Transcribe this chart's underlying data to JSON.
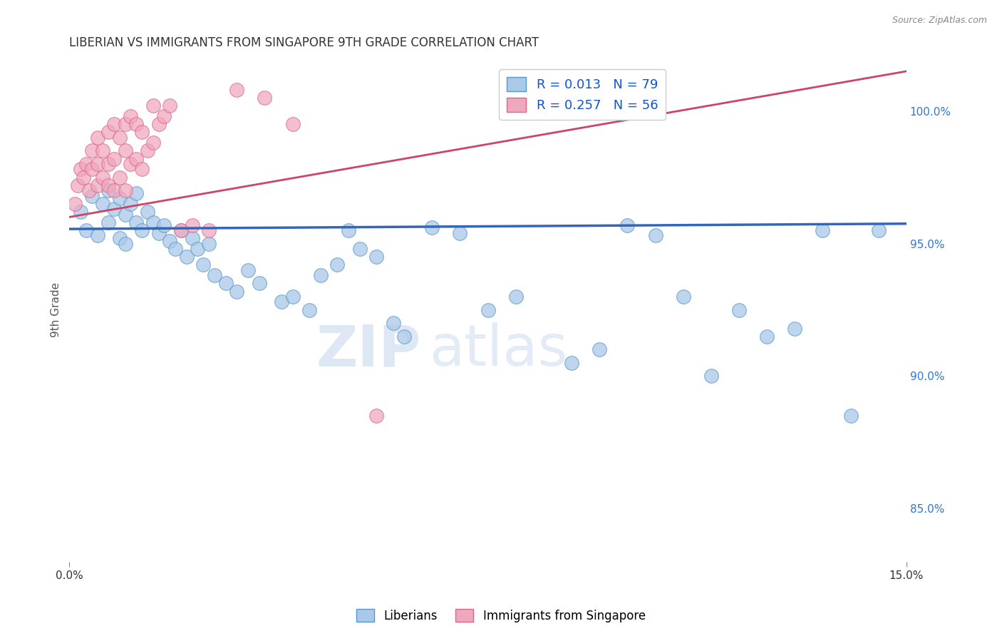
{
  "title": "LIBERIAN VS IMMIGRANTS FROM SINGAPORE 9TH GRADE CORRELATION CHART",
  "source": "Source: ZipAtlas.com",
  "ylabel": "9th Grade",
  "y_ticks": [
    85.0,
    90.0,
    95.0,
    100.0
  ],
  "x_range": [
    0.0,
    15.0
  ],
  "y_range": [
    83.0,
    102.0
  ],
  "blue_R": 0.013,
  "blue_N": 79,
  "pink_R": 0.257,
  "pink_N": 56,
  "blue_color": "#aac8e8",
  "pink_color": "#f0a8be",
  "blue_edge_color": "#5599cc",
  "pink_edge_color": "#dd6688",
  "blue_line_color": "#3366bb",
  "pink_line_color": "#cc4466",
  "legend_label_blue": "Liberians",
  "legend_label_pink": "Immigrants from Singapore",
  "watermark_zip": "ZIP",
  "watermark_atlas": "atlas",
  "blue_scatter_x": [
    0.2,
    0.3,
    0.4,
    0.5,
    0.6,
    0.7,
    0.7,
    0.8,
    0.9,
    0.9,
    1.0,
    1.0,
    1.1,
    1.2,
    1.2,
    1.3,
    1.4,
    1.5,
    1.6,
    1.7,
    1.8,
    1.9,
    2.0,
    2.1,
    2.2,
    2.3,
    2.4,
    2.5,
    2.6,
    2.8,
    3.0,
    3.2,
    3.4,
    3.8,
    4.0,
    4.3,
    4.5,
    4.8,
    5.0,
    5.2,
    5.5,
    5.8,
    6.0,
    6.5,
    7.0,
    7.5,
    8.0,
    9.0,
    9.5,
    10.0,
    10.5,
    11.0,
    11.5,
    12.0,
    12.5,
    13.0,
    13.5,
    14.0,
    14.5
  ],
  "blue_scatter_y": [
    96.2,
    95.5,
    96.8,
    95.3,
    96.5,
    97.0,
    95.8,
    96.3,
    96.7,
    95.2,
    96.1,
    95.0,
    96.5,
    95.8,
    96.9,
    95.5,
    96.2,
    95.8,
    95.4,
    95.7,
    95.1,
    94.8,
    95.5,
    94.5,
    95.2,
    94.8,
    94.2,
    95.0,
    93.8,
    93.5,
    93.2,
    94.0,
    93.5,
    92.8,
    93.0,
    92.5,
    93.8,
    94.2,
    95.5,
    94.8,
    94.5,
    92.0,
    91.5,
    95.6,
    95.4,
    92.5,
    93.0,
    90.5,
    91.0,
    95.7,
    95.3,
    93.0,
    90.0,
    92.5,
    91.5,
    91.8,
    95.5,
    88.5,
    95.5
  ],
  "pink_scatter_x": [
    0.1,
    0.15,
    0.2,
    0.25,
    0.3,
    0.35,
    0.4,
    0.4,
    0.5,
    0.5,
    0.5,
    0.6,
    0.6,
    0.7,
    0.7,
    0.7,
    0.8,
    0.8,
    0.8,
    0.9,
    0.9,
    1.0,
    1.0,
    1.0,
    1.1,
    1.1,
    1.2,
    1.2,
    1.3,
    1.3,
    1.4,
    1.5,
    1.5,
    1.6,
    1.7,
    1.8,
    2.0,
    2.2,
    2.5,
    3.0,
    3.5,
    4.0,
    5.5
  ],
  "pink_scatter_y": [
    96.5,
    97.2,
    97.8,
    97.5,
    98.0,
    97.0,
    97.8,
    98.5,
    98.0,
    97.2,
    99.0,
    98.5,
    97.5,
    99.2,
    98.0,
    97.2,
    99.5,
    98.2,
    97.0,
    99.0,
    97.5,
    99.5,
    98.5,
    97.0,
    99.8,
    98.0,
    99.5,
    98.2,
    99.2,
    97.8,
    98.5,
    100.2,
    98.8,
    99.5,
    99.8,
    100.2,
    95.5,
    95.7,
    95.5,
    100.8,
    100.5,
    99.5,
    88.5
  ],
  "blue_line_y_at_0": 95.55,
  "blue_line_y_at_15": 95.75,
  "pink_line_y_at_0": 96.0,
  "pink_line_y_at_15": 101.5
}
